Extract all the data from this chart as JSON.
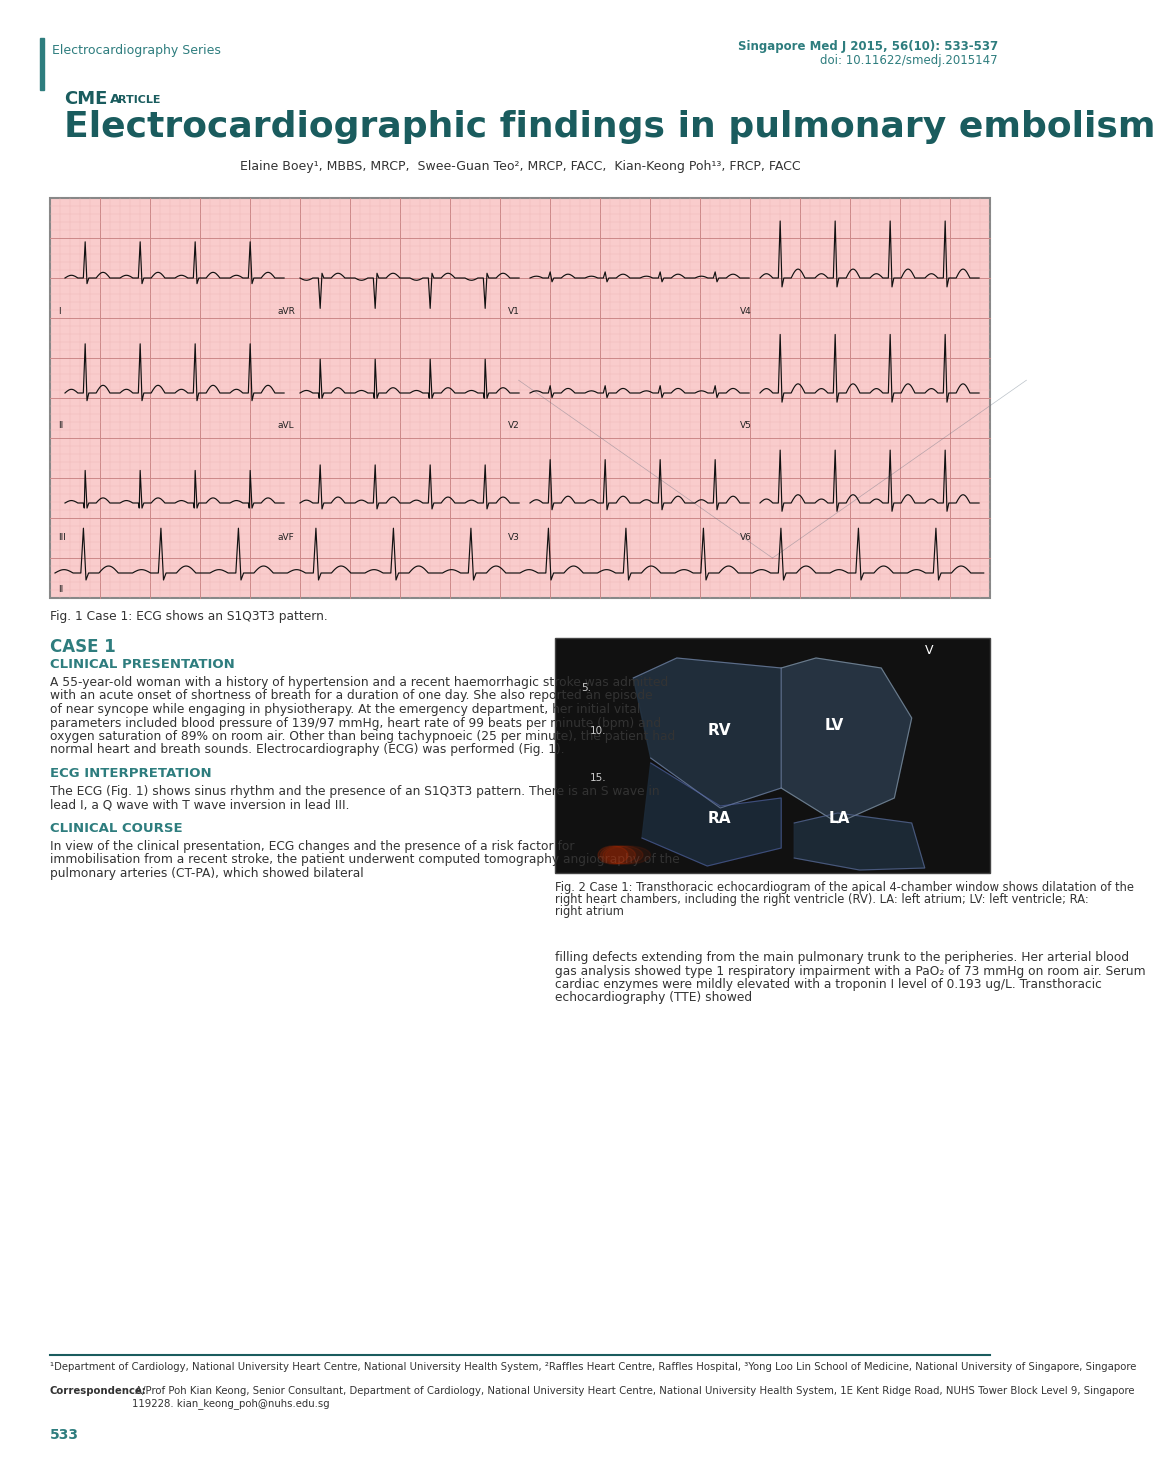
{
  "title": "Electrocardiographic findings in pulmonary embolism",
  "cme_label": "CME",
  "article_label": "ARTICLE",
  "series_label": "Electrocardiography Series",
  "journal_ref": "Singapore Med J 2015, 56(10): 533-537",
  "doi": "doi: 10.11622/smedj.2015147",
  "authors_full": "Elaine Boey¹, MBBS, MRCP,  Swee-Guan Teo², MRCP, FACC,  Kian-Keong Poh¹³, FRCP, FACC",
  "fig1_caption": "Fig. 1 Case 1: ECG shows an S1Q3T3 pattern.",
  "case1_heading": "CASE 1",
  "clinical_pres_heading": "CLINICAL PRESENTATION",
  "clinical_pres_text": "A 55-year-old woman with a history of hypertension and a recent haemorrhagic stroke was admitted with an acute onset of shortness of breath for a duration of one day. She also reported an episode of near syncope while engaging in physiotherapy. At the emergency department, her initial vital parameters included blood pressure of 139/97 mmHg, heart rate of 99 beats per minute (bpm) and oxygen saturation of 89% on room air. Other than being tachypnoeic (25 per minute), the patient had normal heart and breath sounds. Electrocardiography (ECG) was performed (Fig. 1).",
  "ecg_interp_heading": "ECG INTERPRETATION",
  "ecg_interp_text": "The ECG (Fig. 1) shows sinus rhythm and the presence of an S1Q3T3 pattern. There is an S wave in lead I, a Q wave with T wave inversion in lead III.",
  "clinical_course_heading": "CLINICAL COURSE",
  "clinical_course_text": "In view of the clinical presentation, ECG changes and the presence of a risk factor for immobilisation from a recent stroke, the patient underwent computed tomography angiography of the pulmonary arteries (CT-PA), which showed bilateral",
  "right_col_text": "filling defects extending from the main pulmonary trunk to the peripheries. Her arterial blood gas analysis showed type 1 respiratory impairment with a PaO₂ of 73 mmHg on room air. Serum cardiac enzymes were mildly elevated with a troponin I level of 0.193 ug/L. Transthoracic echocardiography (TTE) showed",
  "fig2_caption": "Fig. 2 Case 1: Transthoracic echocardiogram of the apical 4-chamber window shows dilatation of the right heart chambers, including the right ventricle (RV). LA: left atrium; LV: left ventricle; RA: right atrium",
  "footnote1": "¹Department of Cardiology, National University Heart Centre, National University Health System, ²Raffles Heart Centre, Raffles Hospital, ³Yong Loo Lin School of Medicine, National University of Singapore, Singapore",
  "corr_bold": "Correspondence:",
  "corr_rest": " A/Prof Poh Kian Keong, Senior Consultant, Department of Cardiology, National University Heart Centre, National University Health System, 1E Kent Ridge Road, NUHS Tower Block Level 9, Singapore 119228. kian_keong_poh@nuhs.edu.sg",
  "page_num": "533",
  "teal_color": "#2e7d7e",
  "dark_teal": "#1a5c5e",
  "ecg_bg": "#f9cccc",
  "ecg_grid_minor": "#ebb0b0",
  "ecg_grid_major": "#cc8888",
  "ecg_line": "#111111",
  "ecg_border": "#888888"
}
